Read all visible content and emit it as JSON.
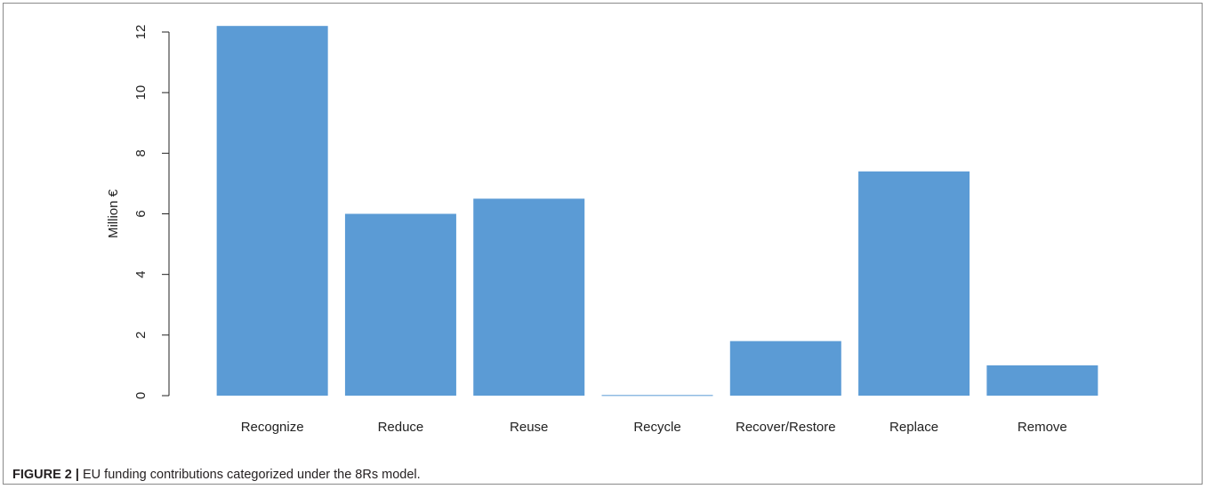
{
  "chart_data": {
    "type": "bar",
    "categories": [
      "Recognize",
      "Reduce",
      "Reuse",
      "Recycle",
      "Recover/Restore",
      "Replace",
      "Remove"
    ],
    "values": [
      12.2,
      6.0,
      6.5,
      0.02,
      1.8,
      7.4,
      1.0
    ],
    "title": "",
    "xlabel": "",
    "ylabel": "Million €",
    "ylim": [
      0,
      12
    ],
    "yticks": [
      "0",
      "2",
      "4",
      "6",
      "8",
      "10",
      "12"
    ],
    "grid": false,
    "legend": "none",
    "bar_color": "#5b9bd5"
  },
  "caption": {
    "label": "FIGURE 2 |",
    "text": " EU funding contributions categorized under the 8Rs model."
  }
}
